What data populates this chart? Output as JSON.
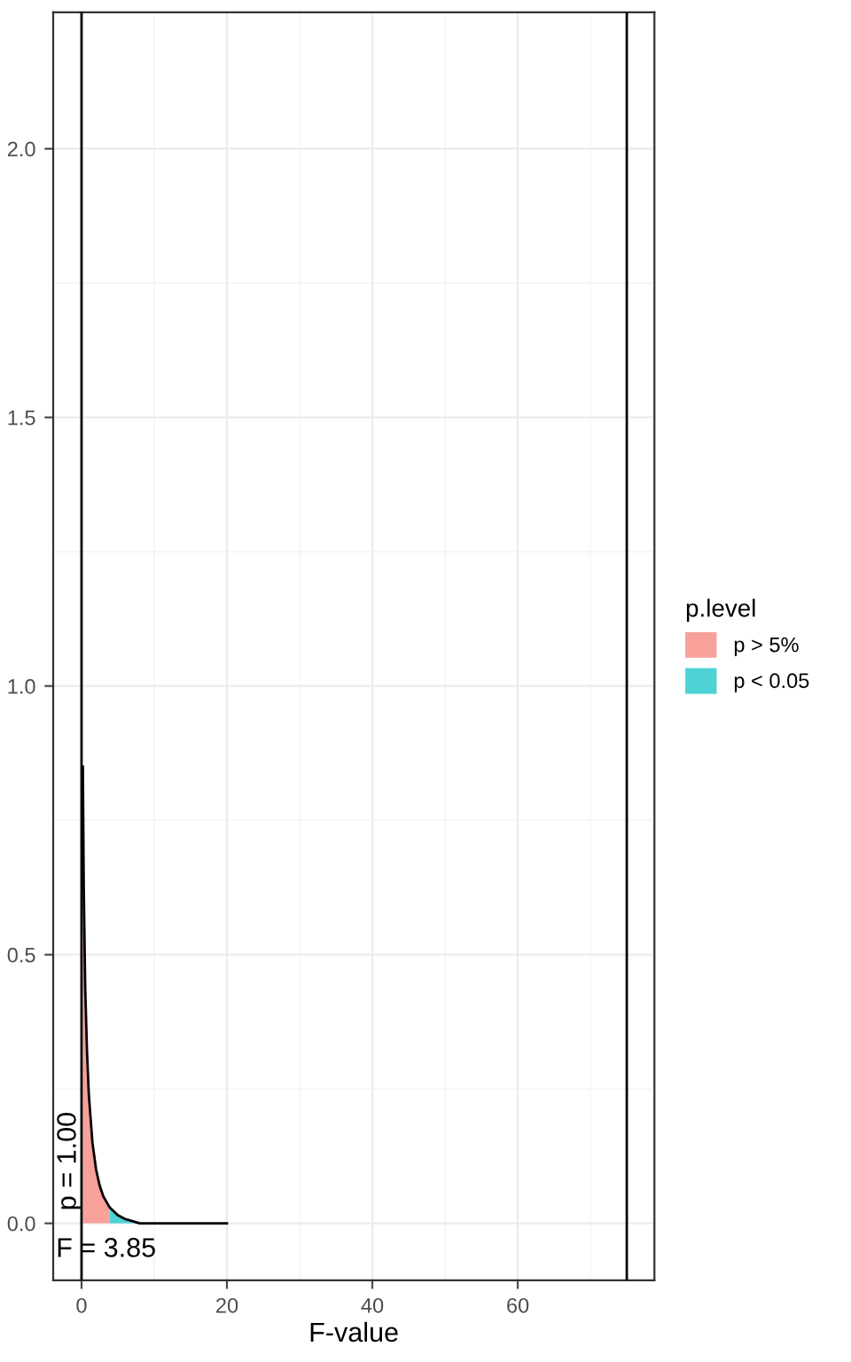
{
  "chart_data": {
    "type": "area",
    "xlabel": "F-value",
    "legend_title": "p.level",
    "legend": "right",
    "grid": true,
    "xlim": [
      -3.9,
      78.8
    ],
    "ylim": [
      -0.106,
      2.254
    ],
    "xticks": [
      0,
      20,
      40,
      60
    ],
    "yticks": [
      {
        "value": 0,
        "label": "0.0"
      },
      {
        "value": 0.5,
        "label": "0.5"
      },
      {
        "value": 1,
        "label": "1.0"
      },
      {
        "value": 1.5,
        "label": "1.5"
      },
      {
        "value": 2,
        "label": "2.0"
      }
    ],
    "series": [
      {
        "name": "p > 5%",
        "color": "#f8a09a",
        "x": [
          0.18,
          0.3,
          0.5,
          0.75,
          1,
          1.5,
          2,
          2.5,
          3,
          3.85
        ],
        "values": [
          0.85,
          0.63,
          0.44,
          0.32,
          0.24,
          0.15,
          0.1,
          0.07,
          0.05,
          0.03
        ]
      },
      {
        "name": "p < 0.05",
        "color": "#4dd2d6",
        "x": [
          3.85,
          5,
          6,
          7,
          8
        ],
        "values": [
          0.03,
          0.015,
          0.008,
          0.004,
          0.0
        ]
      },
      {
        "type": "line",
        "color": "#000000",
        "x": [
          0.18,
          0.3,
          0.5,
          0.75,
          1,
          1.5,
          2,
          2.5,
          3,
          3.85,
          5,
          6,
          7,
          8,
          10,
          20
        ],
        "values": [
          0.85,
          0.63,
          0.44,
          0.32,
          0.24,
          0.15,
          0.1,
          0.07,
          0.05,
          0.03,
          0.015,
          0.008,
          0.004,
          0.0,
          0.0,
          0.0
        ]
      }
    ],
    "ref_lines": [
      {
        "axis": "x",
        "value": 0,
        "color": "#000000"
      },
      {
        "axis": "x",
        "value": 75,
        "color": "#000000"
      }
    ],
    "annotations": [
      "p = 1.00",
      "F = 3.85"
    ]
  }
}
